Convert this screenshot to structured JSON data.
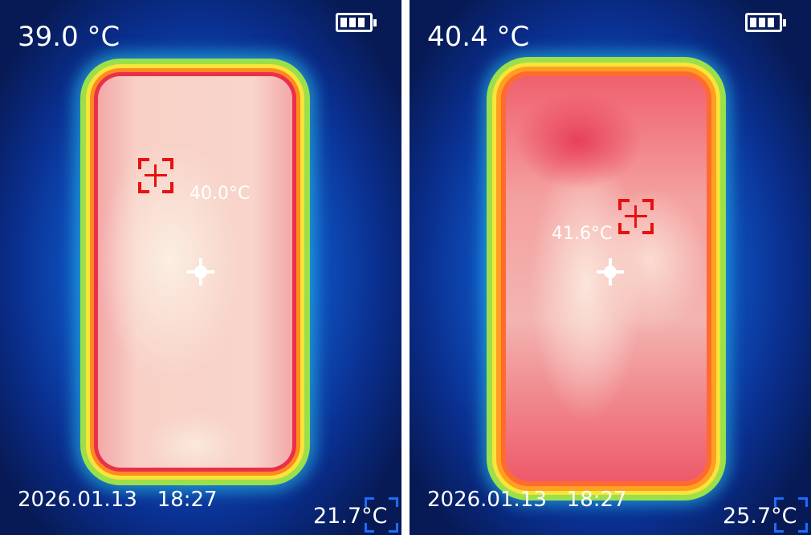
{
  "panels": [
    {
      "main_temp": "39.0 °C",
      "spot_temp": "40.0°C",
      "date": "2026.01.13",
      "time": "18:27",
      "min_temp": "21.7°C",
      "battery_level": "3/3"
    },
    {
      "main_temp": "40.4 °C",
      "spot_temp": "41.6°C",
      "date": "2026.01.13",
      "time": "18:27",
      "min_temp": "25.7°C",
      "battery_level": "3/3"
    }
  ],
  "colors": {
    "background_cold": "#0a2f8f",
    "hot": "#f8d0c6",
    "marker": "#e81010",
    "frame": "#1e6cff"
  }
}
